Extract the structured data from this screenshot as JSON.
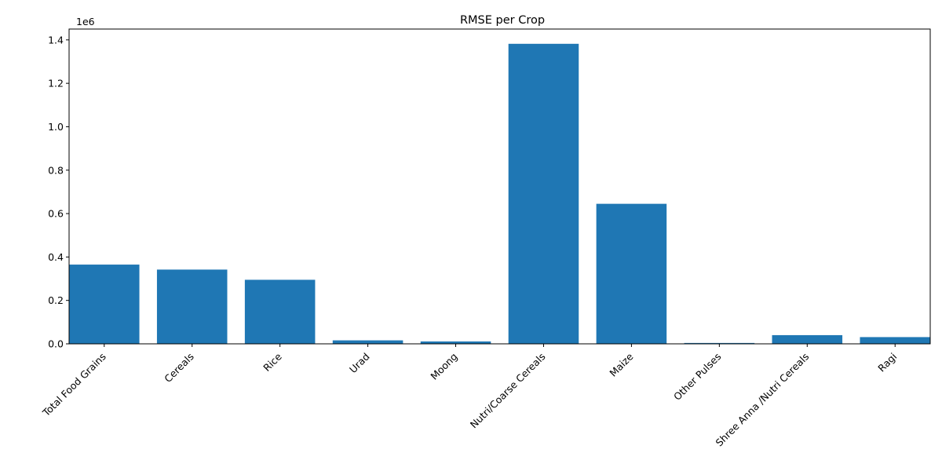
{
  "chart_data": {
    "type": "bar",
    "title": "RMSE per Crop",
    "xlabel": "",
    "ylabel": "",
    "y_scale_label": "1e6",
    "categories": [
      "Total Food Grains",
      "Cereals",
      "Rice",
      "Urad",
      "Moong",
      "Nutri/Coarse Cereals",
      "Maize",
      "Other Pulses",
      "Shree Anna /Nutri Cereals",
      "Ragi"
    ],
    "values": [
      365000,
      342000,
      295000,
      16000,
      11000,
      1382000,
      645000,
      4000,
      40000,
      31000
    ],
    "ylim": [
      0,
      1450000
    ],
    "yticks": [
      0,
      200000,
      400000,
      600000,
      800000,
      1000000,
      1200000,
      1400000
    ],
    "ytick_labels": [
      "0.0",
      "0.2",
      "0.4",
      "0.6",
      "0.8",
      "1.0",
      "1.2",
      "1.4"
    ],
    "bar_color": "#1f77b4",
    "grid": false,
    "legend": "none"
  }
}
